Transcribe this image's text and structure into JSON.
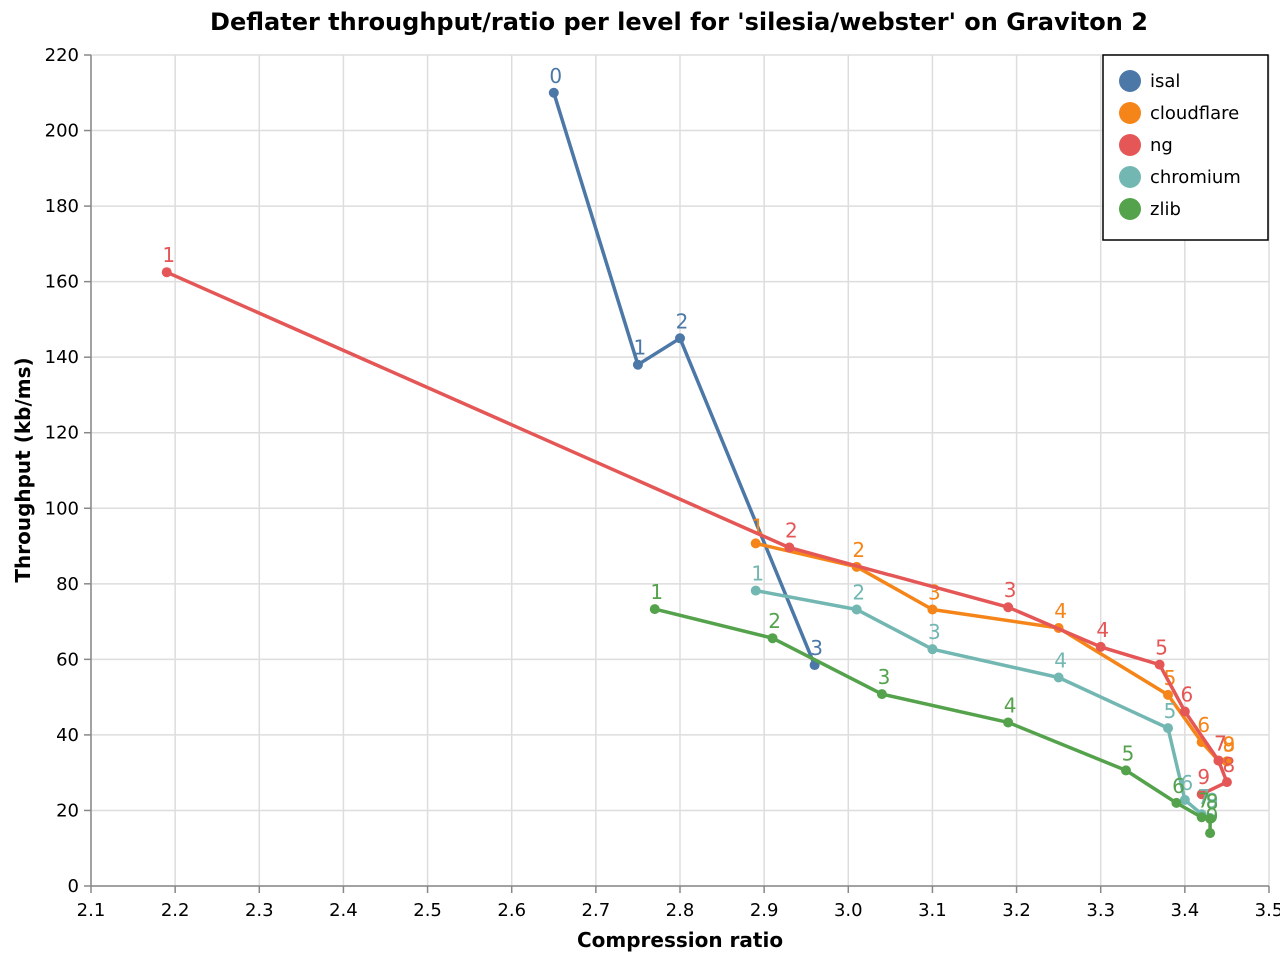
{
  "chart_data": {
    "type": "line",
    "title": "Deflater throughput/ratio per level for 'silesia/webster' on Graviton 2",
    "xlabel": "Compression ratio",
    "ylabel": "Throughput (kb/ms)",
    "xlim": [
      2.1,
      3.5
    ],
    "ylim": [
      0,
      220
    ],
    "xticks": [
      "2.1",
      "2.2",
      "2.3",
      "2.4",
      "2.5",
      "2.6",
      "2.7",
      "2.8",
      "2.9",
      "3.0",
      "3.1",
      "3.2",
      "3.3",
      "3.4",
      "3.5"
    ],
    "yticks": [
      "0",
      "20",
      "40",
      "60",
      "80",
      "100",
      "120",
      "140",
      "160",
      "180",
      "200",
      "220"
    ],
    "grid": true,
    "legend_position": "top-right",
    "series": [
      {
        "name": "isal",
        "color": "#4c78a8",
        "points": [
          {
            "x": 2.65,
            "y": 210,
            "label": "0"
          },
          {
            "x": 2.75,
            "y": 138,
            "label": "1"
          },
          {
            "x": 2.8,
            "y": 145,
            "label": "2"
          },
          {
            "x": 2.96,
            "y": 58.5,
            "label": "3"
          }
        ]
      },
      {
        "name": "cloudflare",
        "color": "#f58518",
        "points": [
          {
            "x": 2.89,
            "y": 90.7,
            "label": "1"
          },
          {
            "x": 3.01,
            "y": 84.5,
            "label": "2"
          },
          {
            "x": 3.1,
            "y": 73.2,
            "label": "3"
          },
          {
            "x": 3.25,
            "y": 68.3,
            "label": "4"
          },
          {
            "x": 3.38,
            "y": 50.6,
            "label": "5"
          },
          {
            "x": 3.42,
            "y": 38.1,
            "label": "6"
          },
          {
            "x": 3.44,
            "y": 33.2,
            "label": "7"
          },
          {
            "x": 3.45,
            "y": 33.0,
            "label": "8"
          },
          {
            "x": 3.45,
            "y": 33.0,
            "label": "9"
          }
        ]
      },
      {
        "name": "ng",
        "color": "#e45756",
        "points": [
          {
            "x": 2.19,
            "y": 162.5,
            "label": "1"
          },
          {
            "x": 2.93,
            "y": 89.6,
            "label": "2"
          },
          {
            "x": 3.19,
            "y": 73.8,
            "label": "3"
          },
          {
            "x": 3.3,
            "y": 63.3,
            "label": "4"
          },
          {
            "x": 3.37,
            "y": 58.6,
            "label": "5"
          },
          {
            "x": 3.4,
            "y": 46.2,
            "label": "6"
          },
          {
            "x": 3.44,
            "y": 33.2,
            "label": "7"
          },
          {
            "x": 3.45,
            "y": 27.5,
            "label": "8"
          },
          {
            "x": 3.42,
            "y": 24.3,
            "label": "9"
          }
        ]
      },
      {
        "name": "chromium",
        "color": "#72b7b2",
        "points": [
          {
            "x": 2.89,
            "y": 78.2,
            "label": "1"
          },
          {
            "x": 3.01,
            "y": 73.2,
            "label": "2"
          },
          {
            "x": 3.1,
            "y": 62.7,
            "label": "3"
          },
          {
            "x": 3.25,
            "y": 55.2,
            "label": "4"
          },
          {
            "x": 3.38,
            "y": 41.8,
            "label": "5"
          },
          {
            "x": 3.4,
            "y": 22.8,
            "label": "6"
          },
          {
            "x": 3.42,
            "y": 19.0,
            "label": "7"
          },
          {
            "x": 3.43,
            "y": 18.0,
            "label": "8"
          },
          {
            "x": 3.43,
            "y": 18.0,
            "label": "9"
          }
        ]
      },
      {
        "name": "zlib",
        "color": "#54a24b",
        "points": [
          {
            "x": 2.77,
            "y": 73.3,
            "label": "1"
          },
          {
            "x": 2.91,
            "y": 65.6,
            "label": "2"
          },
          {
            "x": 3.04,
            "y": 50.8,
            "label": "3"
          },
          {
            "x": 3.19,
            "y": 43.3,
            "label": "4"
          },
          {
            "x": 3.33,
            "y": 30.6,
            "label": "5"
          },
          {
            "x": 3.39,
            "y": 22.0,
            "label": "6"
          },
          {
            "x": 3.42,
            "y": 18.2,
            "label": "7"
          },
          {
            "x": 3.43,
            "y": 17.8,
            "label": "8"
          },
          {
            "x": 3.43,
            "y": 14.0,
            "label": "9"
          }
        ]
      }
    ]
  }
}
